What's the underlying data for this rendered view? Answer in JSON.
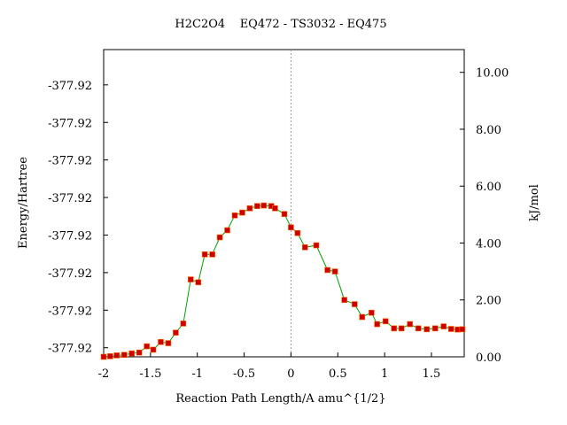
{
  "chart_data": {
    "type": "line",
    "title": "H2C2O4    EQ472 - TS3032 - EQ475",
    "xlabel": "Reaction Path Length/A amu^{1/2}",
    "ylabel_left": "Energy/Hartree",
    "ylabel_right": "kJ/mol",
    "xlim": [
      -2.0,
      1.85
    ],
    "y_right_lim": [
      0.0,
      10.8
    ],
    "x_ticks": [
      -2,
      -1.5,
      -1,
      -0.5,
      0,
      0.5,
      1,
      1.5
    ],
    "x_tick_labels": [
      "-2",
      "-1.5",
      "-1",
      "-0.5",
      "0",
      "0.5",
      "1",
      "1.5"
    ],
    "y_right_ticks": [
      0,
      2,
      4,
      6,
      8,
      10
    ],
    "y_right_tick_labels": [
      "0.00",
      "2.00",
      "4.00",
      "6.00",
      "8.00",
      "10.00"
    ],
    "y_left_tick_positions_kjmol": [
      0.32,
      1.64,
      2.96,
      4.28,
      5.6,
      6.92,
      8.24,
      9.56
    ],
    "y_left_tick_labels": [
      "-377.92",
      "-377.92",
      "-377.92",
      "-377.92",
      "-377.92",
      "-377.92",
      "-377.92",
      "-377.92"
    ],
    "ts_marker_x": 0.0,
    "line_color": "#00a000",
    "marker_color": "#cc0000",
    "series": [
      {
        "x": [
          -2.0,
          -1.93,
          -1.86,
          -1.78,
          -1.7,
          -1.62,
          -1.54,
          -1.47,
          -1.39,
          -1.31,
          -1.23,
          -1.15,
          -1.07,
          -0.99,
          -0.92,
          -0.84,
          -0.76,
          -0.68,
          -0.6,
          -0.52,
          -0.44,
          -0.36,
          -0.29,
          -0.21,
          -0.17,
          -0.07,
          0.0,
          0.07,
          0.15,
          0.27,
          0.39,
          0.47,
          0.57,
          0.68,
          0.76,
          0.86,
          0.92,
          1.01,
          1.1,
          1.18,
          1.27,
          1.36,
          1.45,
          1.54,
          1.63,
          1.71,
          1.78,
          1.83
        ],
        "y": [
          0.0,
          0.02,
          0.05,
          0.07,
          0.12,
          0.15,
          0.37,
          0.25,
          0.52,
          0.48,
          0.85,
          1.17,
          2.72,
          2.62,
          3.6,
          3.6,
          4.2,
          4.45,
          4.97,
          5.07,
          5.22,
          5.3,
          5.32,
          5.3,
          5.22,
          5.02,
          4.55,
          4.35,
          3.85,
          3.92,
          3.05,
          3.0,
          2.0,
          1.85,
          1.4,
          1.55,
          1.15,
          1.25,
          1.0,
          1.0,
          1.15,
          1.0,
          0.97,
          1.0,
          1.07,
          0.98,
          0.96,
          0.97
        ]
      }
    ]
  }
}
